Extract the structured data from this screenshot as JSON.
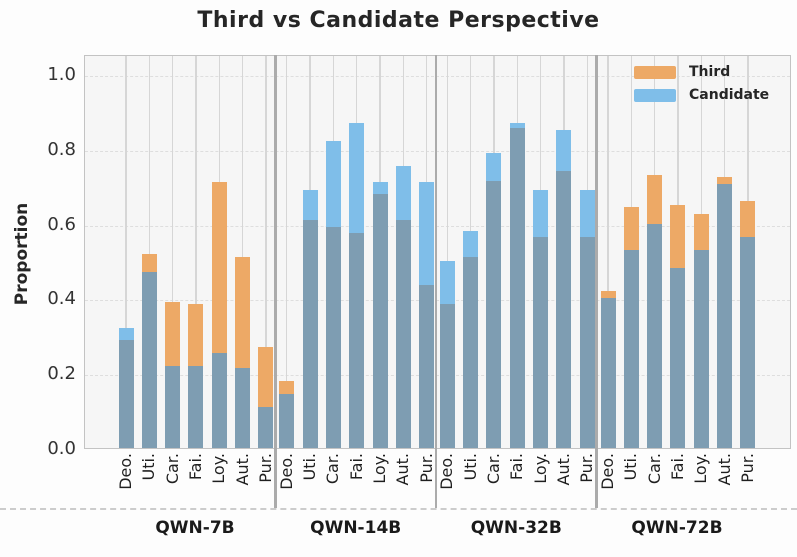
{
  "title": "Third vs Candidate Perspective",
  "y_axis": {
    "label": "Proportion"
  },
  "legend": {
    "items": [
      {
        "label": "Third",
        "color": "#EDA966"
      },
      {
        "label": "Candidate",
        "color": "#7FBEE9"
      }
    ]
  },
  "colors": {
    "third": "#EDA966",
    "candidate": "#7FBEE9",
    "overlap": "#7E9DB2",
    "plot_background": "#f6f6f6",
    "separator": "#ababab"
  },
  "chart_data": {
    "type": "bar",
    "subtype": "overlaid-transparent-bars (overlap shown steel-gray, excess shown in series color)",
    "title": "Third vs Candidate Perspective",
    "ylabel": "Proportion",
    "ylim": [
      0,
      1.05
    ],
    "yticks": [
      "0.0",
      "0.2",
      "0.4",
      "0.6",
      "0.8",
      "1.0"
    ],
    "ytick_values": [
      0,
      0.2,
      0.4,
      0.6,
      0.8,
      1.0
    ],
    "categories": [
      "Deo.",
      "Uti.",
      "Car.",
      "Fai.",
      "Loy.",
      "Aut.",
      "Pur."
    ],
    "grid": "vertical solid per bar + horizontal dashed per tick",
    "legend_position": "upper right",
    "groups": [
      {
        "label": "QWN-7B",
        "third": [
          0.29,
          0.52,
          0.39,
          0.385,
          0.71,
          0.51,
          0.27
        ],
        "candidate": [
          0.32,
          0.47,
          0.22,
          0.22,
          0.255,
          0.215,
          0.11
        ]
      },
      {
        "label": "QWN-14B",
        "third": [
          0.18,
          0.61,
          0.59,
          0.575,
          0.68,
          0.61,
          0.435
        ],
        "candidate": [
          0.145,
          0.69,
          0.82,
          0.87,
          0.71,
          0.755,
          0.71
        ]
      },
      {
        "label": "QWN-32B",
        "third": [
          0.385,
          0.51,
          0.715,
          0.855,
          0.565,
          0.74,
          0.565
        ],
        "candidate": [
          0.5,
          0.58,
          0.79,
          0.87,
          0.69,
          0.85,
          0.69
        ]
      },
      {
        "label": "QWN-72B",
        "third": [
          0.42,
          0.645,
          0.73,
          0.65,
          0.625,
          0.725,
          0.66
        ],
        "candidate": [
          0.4,
          0.53,
          0.6,
          0.48,
          0.53,
          0.705,
          0.565
        ]
      }
    ]
  }
}
